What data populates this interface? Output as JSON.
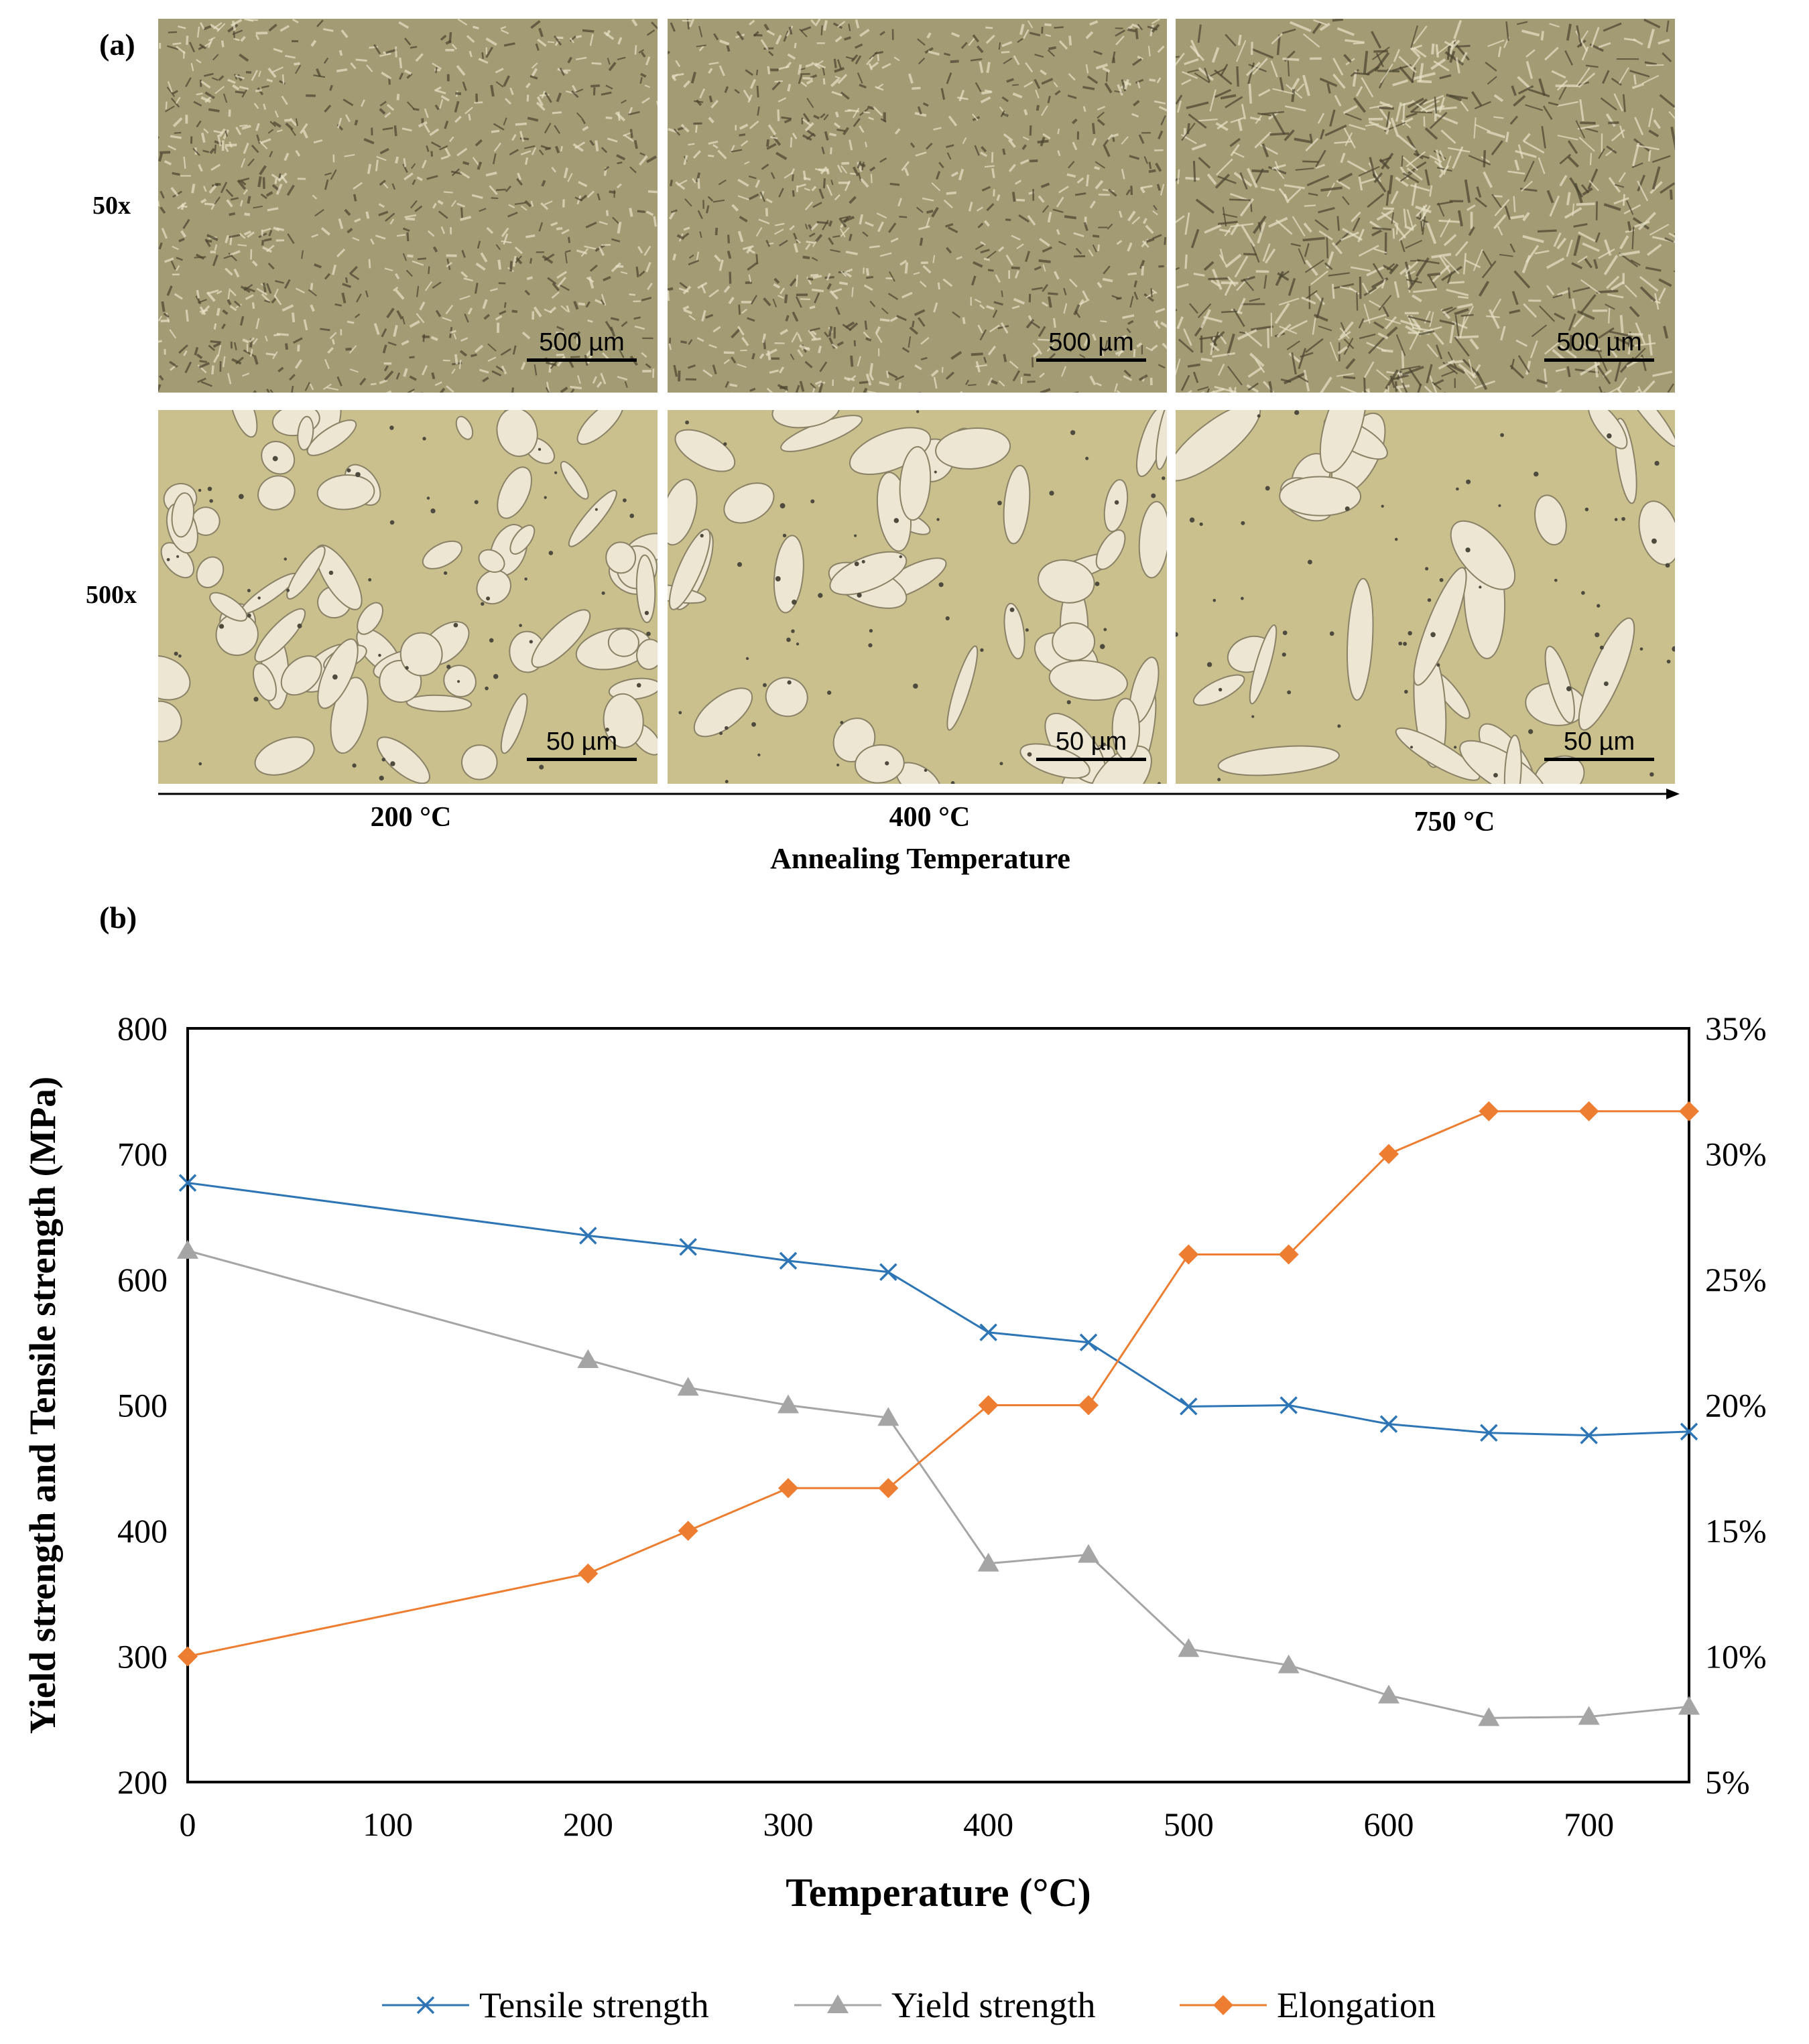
{
  "panel_a": {
    "label": "(a)",
    "row_labels": [
      "50x",
      "500x"
    ],
    "scale_labels": {
      "low_mag": "500 µm",
      "high_mag": "50 µm"
    },
    "temperatures": [
      "200 °C",
      "400 °C",
      "750 °C"
    ],
    "axis_caption": "Annealing Temperature"
  },
  "panel_b": {
    "label": "(b)"
  },
  "colors": {
    "tensile": "#2e75b6",
    "yield": "#a5a5a5",
    "elongation": "#ed7d31",
    "micro_50x": "#a39b73",
    "micro_500x_matrix": "#c9c08e",
    "micro_500x_grain": "#ece6d3"
  },
  "chart_data": {
    "type": "line",
    "title": "",
    "xlabel": "Temperature (°C)",
    "ylabel": "Yield strength and Tensile strength (MPa)",
    "y2label": "",
    "xlim": [
      0,
      750
    ],
    "ylim": [
      200,
      800
    ],
    "y2lim": [
      5,
      35
    ],
    "x_ticks": [
      0,
      100,
      200,
      300,
      400,
      500,
      600,
      700
    ],
    "y_ticks": [
      200,
      300,
      400,
      500,
      600,
      700,
      800
    ],
    "y2_ticks": [
      "5%",
      "10%",
      "15%",
      "20%",
      "25%",
      "30%",
      "35%"
    ],
    "x": [
      0,
      200,
      250,
      300,
      350,
      400,
      450,
      500,
      550,
      600,
      650,
      700,
      750
    ],
    "series": [
      {
        "name": "Tensile strength",
        "axis": "left",
        "marker": "x",
        "values": [
          677,
          635,
          626,
          615,
          606,
          558,
          550,
          499,
          500,
          485,
          478,
          476,
          479
        ]
      },
      {
        "name": "Yield strength",
        "axis": "left",
        "marker": "triangle",
        "values": [
          623,
          536,
          514,
          500,
          490,
          374,
          381,
          306,
          293,
          269,
          251,
          252,
          260
        ]
      },
      {
        "name": "Elongation",
        "axis": "right",
        "marker": "diamond",
        "values": [
          10.0,
          13.3,
          15.0,
          16.7,
          16.7,
          20.0,
          20.0,
          26.0,
          26.0,
          30.0,
          31.7,
          31.7,
          31.7
        ]
      }
    ],
    "legend_position": "bottom"
  }
}
